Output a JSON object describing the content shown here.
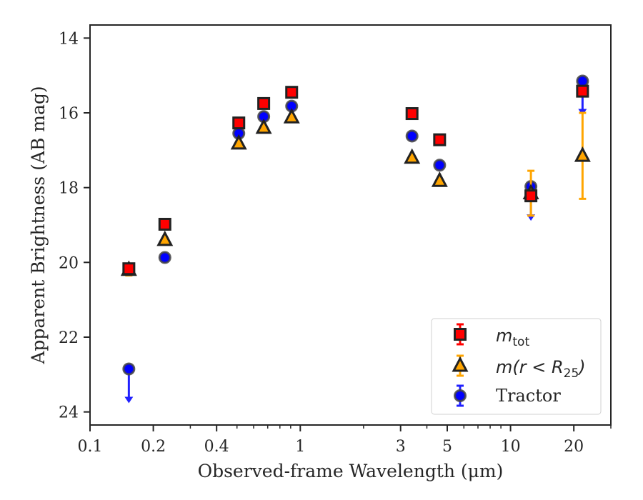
{
  "chart_data": {
    "type": "scatter",
    "xlabel": "Observed-frame Wavelength (μm)",
    "ylabel": "Apparent Brightness (AB mag)",
    "x_scale": "log",
    "xlim": [
      0.1,
      30
    ],
    "ylim": [
      24.35,
      13.65
    ],
    "y_inverted": true,
    "grid": false,
    "legend_position": "bottom-right",
    "x_ticks": [
      {
        "value": 0.1,
        "label": "0.1"
      },
      {
        "value": 0.2,
        "label": "0.2"
      },
      {
        "value": 0.4,
        "label": "0.4"
      },
      {
        "value": 1,
        "label": "1"
      },
      {
        "value": 3,
        "label": "3"
      },
      {
        "value": 5,
        "label": "5"
      },
      {
        "value": 10,
        "label": "10"
      },
      {
        "value": 20,
        "label": "20"
      }
    ],
    "x_minor_ticks": [
      0.3,
      0.5,
      0.6,
      0.7,
      0.8,
      0.9,
      2,
      4,
      6,
      7,
      8,
      9,
      30
    ],
    "y_ticks": [
      14,
      16,
      18,
      20,
      22,
      24
    ],
    "series": [
      {
        "key": "mtot",
        "legend_base": "m",
        "legend_sub": "tot",
        "marker": "square",
        "color": "#ff0000",
        "error_color": "#ff0000",
        "points": [
          {
            "x": 0.153,
            "y": 20.17,
            "err": 0.05
          },
          {
            "x": 0.227,
            "y": 18.98,
            "err": 0.05
          },
          {
            "x": 0.51,
            "y": 16.27,
            "err": 0.03
          },
          {
            "x": 0.67,
            "y": 15.75,
            "err": 0.03
          },
          {
            "x": 0.91,
            "y": 15.45,
            "err": 0.03
          },
          {
            "x": 3.4,
            "y": 16.02,
            "err": 0.03
          },
          {
            "x": 4.6,
            "y": 16.72,
            "err": 0.03
          },
          {
            "x": 12.5,
            "y": 18.22,
            "err": 0.05
          },
          {
            "x": 22.0,
            "y": 15.42,
            "err": 0.05
          }
        ]
      },
      {
        "key": "mr25",
        "legend_base": "m(r < R",
        "legend_sub": "25",
        "legend_close": ")",
        "marker": "triangle",
        "color": "#ffa500",
        "error_color": "#ffa500",
        "points": [
          {
            "x": 0.153,
            "y": 20.2,
            "err": 0.15
          },
          {
            "x": 0.227,
            "y": 19.4,
            "err": 0.05
          },
          {
            "x": 0.51,
            "y": 16.82,
            "err": 0.03
          },
          {
            "x": 0.67,
            "y": 16.4,
            "err": 0.03
          },
          {
            "x": 0.91,
            "y": 16.12,
            "err": 0.03
          },
          {
            "x": 3.4,
            "y": 17.2,
            "err": 0.03
          },
          {
            "x": 4.6,
            "y": 17.82,
            "err": 0.03
          },
          {
            "x": 12.5,
            "y": 18.15,
            "err": 0.6
          },
          {
            "x": 22.0,
            "y": 17.15,
            "err": 1.15
          }
        ]
      },
      {
        "key": "tractor",
        "legend_base": "Tractor",
        "marker": "circle",
        "color": "#0000ff",
        "error_color": "#2020ff",
        "points": [
          {
            "x": 0.153,
            "y": 22.85,
            "upper_limit": true
          },
          {
            "x": 0.227,
            "y": 19.87,
            "err": 0.05
          },
          {
            "x": 0.51,
            "y": 16.55,
            "err": 0.08
          },
          {
            "x": 0.67,
            "y": 16.1,
            "err": 0.08
          },
          {
            "x": 0.91,
            "y": 15.82,
            "err": 0.08
          },
          {
            "x": 3.4,
            "y": 16.62,
            "err": 0.08
          },
          {
            "x": 4.6,
            "y": 17.4,
            "err": 0.08
          },
          {
            "x": 12.5,
            "y": 17.97,
            "upper_limit": true
          },
          {
            "x": 22.0,
            "y": 15.15,
            "upper_limit": true
          }
        ]
      }
    ]
  }
}
